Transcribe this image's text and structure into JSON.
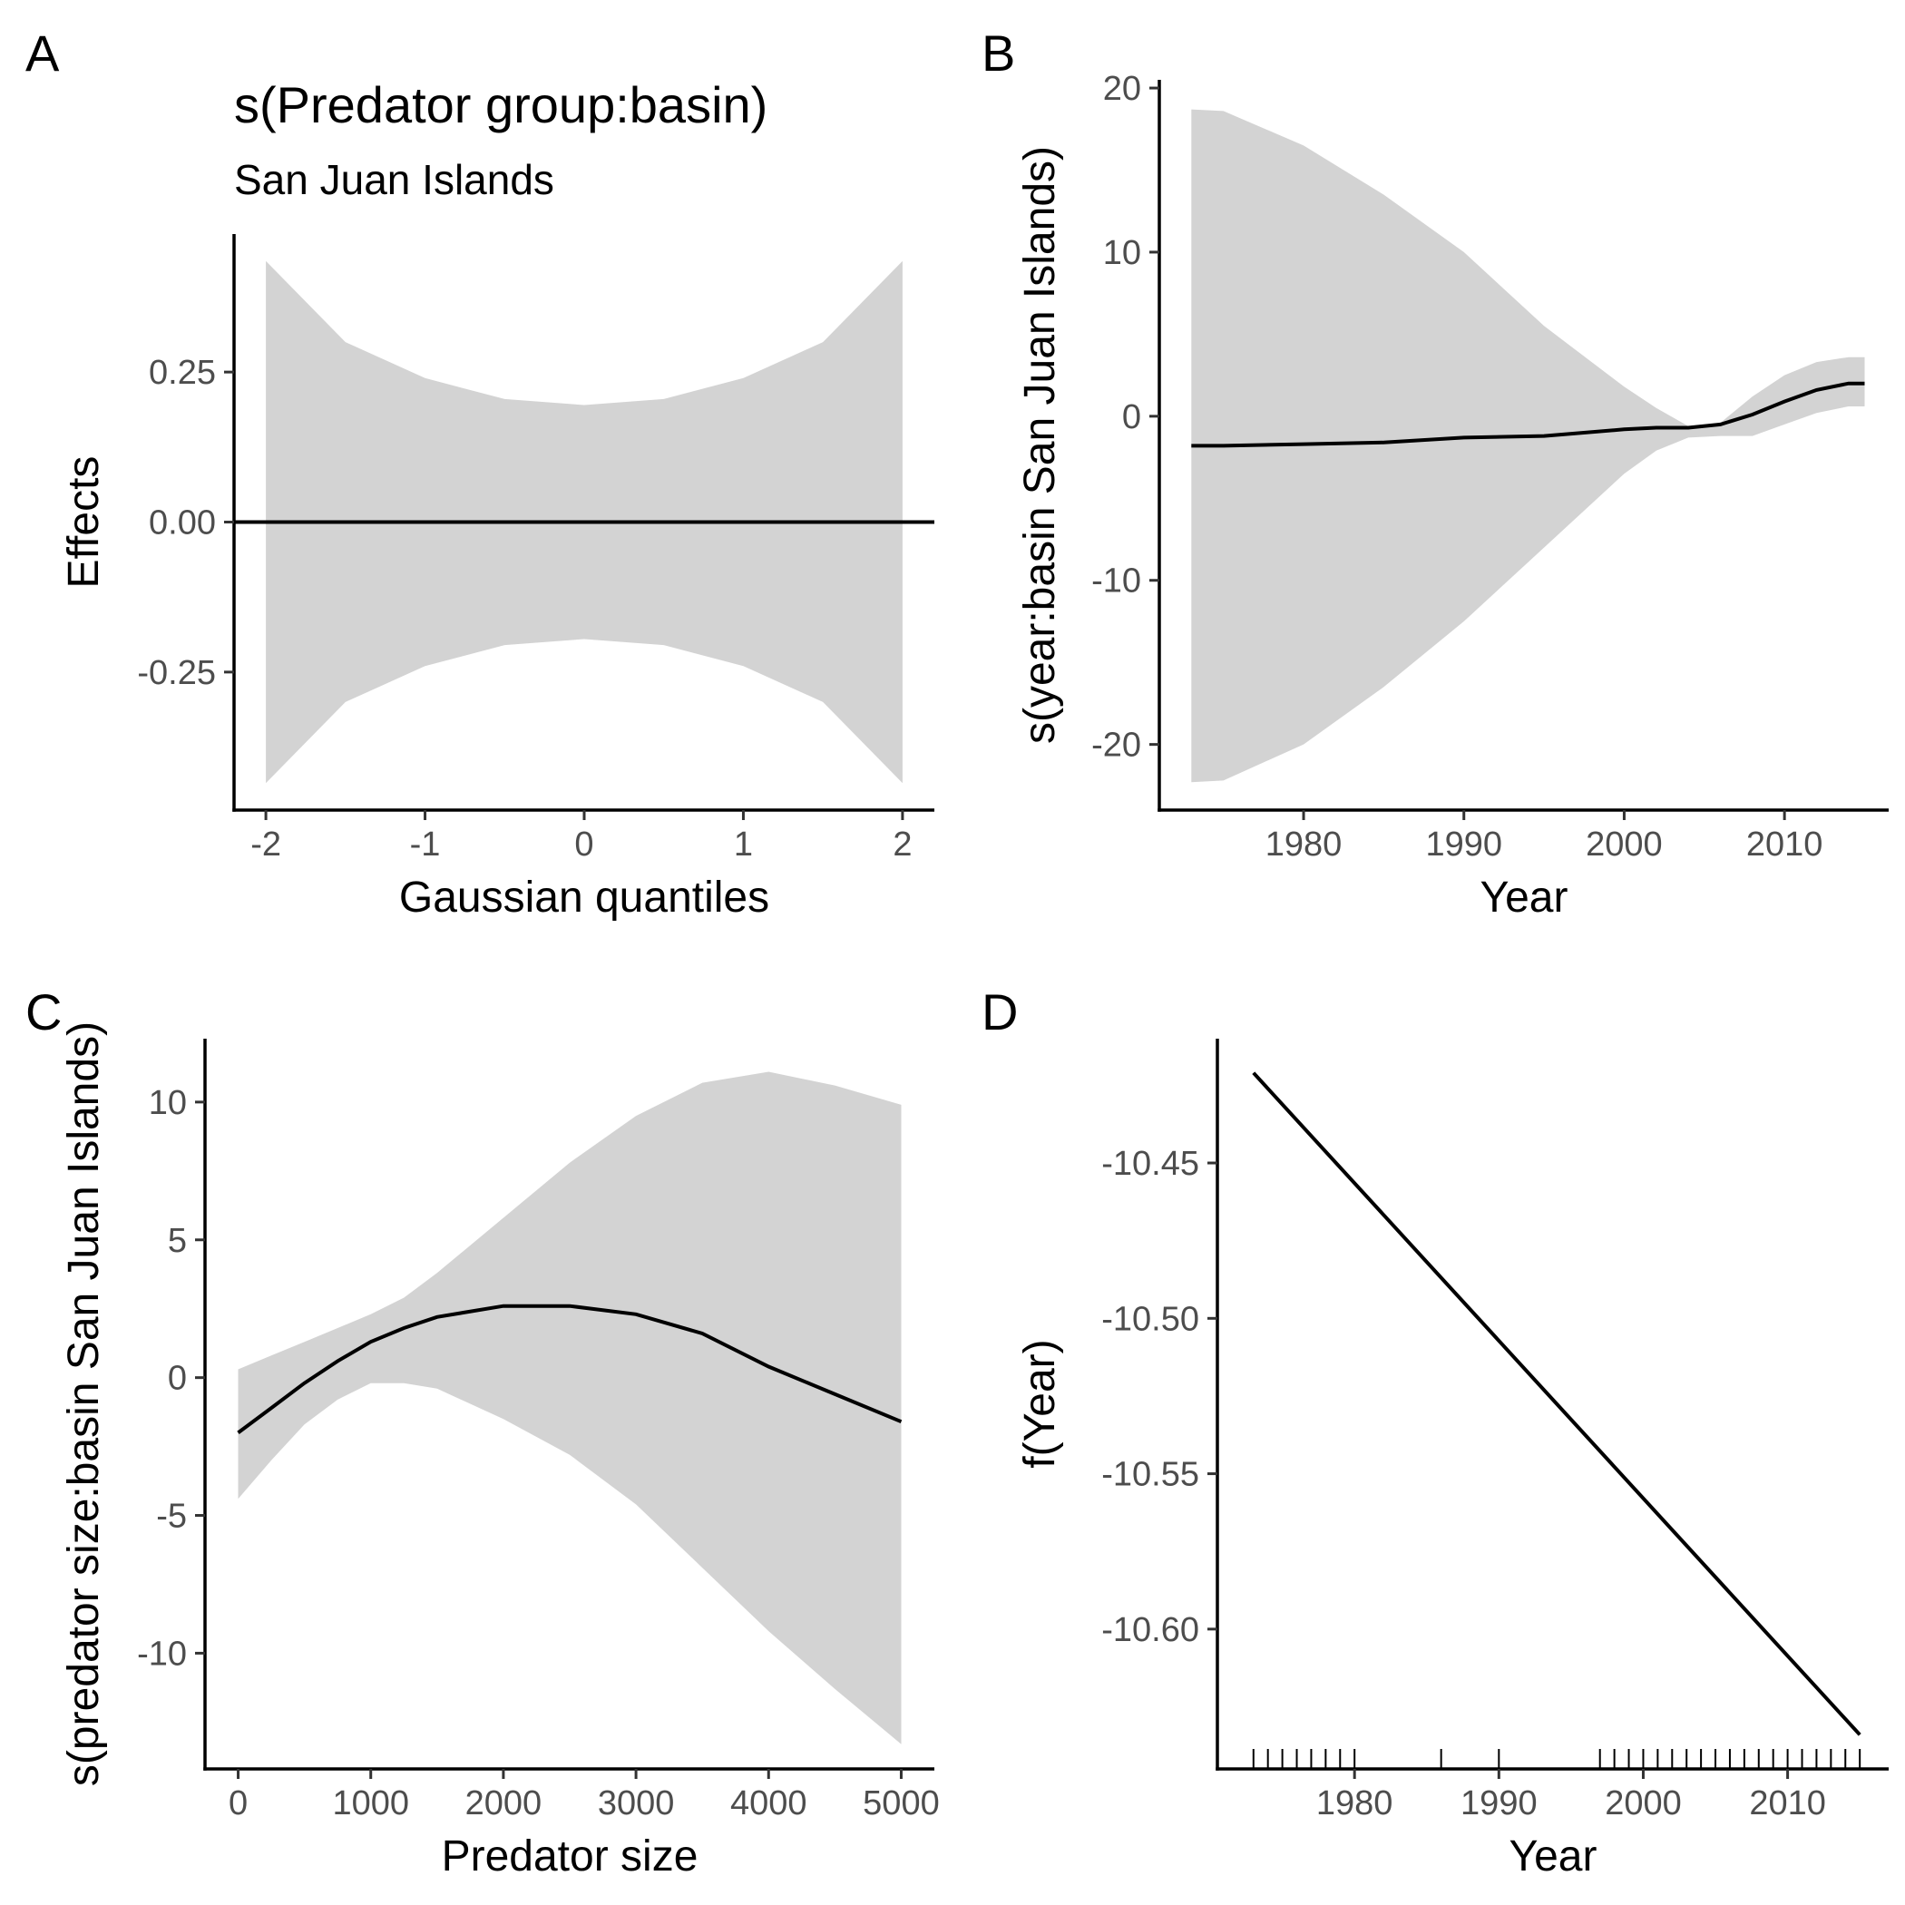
{
  "chart_data": [
    {
      "panel": "A",
      "type": "line",
      "title": "s(Predator group:basin)",
      "subtitle": "San Juan Islands",
      "xlabel": "Gaussian quantiles",
      "ylabel": "Effects",
      "xlim": [
        -2.2,
        2.2
      ],
      "ylim": [
        -0.48,
        0.48
      ],
      "xticks": [
        -2,
        -1,
        0,
        1,
        2
      ],
      "xtick_labels": [
        "-2",
        "-1",
        "0",
        "1",
        "2"
      ],
      "yticks": [
        -0.25,
        0,
        0.25
      ],
      "ytick_labels": [
        "-0.25",
        "0.00",
        "0.25"
      ],
      "line": {
        "x": [
          -2.2,
          2.2
        ],
        "y": [
          0,
          0
        ]
      },
      "band": {
        "x": [
          -2,
          -1.5,
          -1,
          -0.5,
          0,
          0.5,
          1,
          1.5,
          2
        ],
        "upper": [
          0.435,
          0.3,
          0.24,
          0.205,
          0.195,
          0.205,
          0.24,
          0.3,
          0.435
        ],
        "lower": [
          -0.435,
          -0.3,
          -0.24,
          -0.205,
          -0.195,
          -0.205,
          -0.24,
          -0.3,
          -0.435
        ]
      }
    },
    {
      "panel": "B",
      "type": "line",
      "xlabel": "Year",
      "ylabel": "s(year:basin San Juan Islands)",
      "xlim": [
        1971,
        2016.5
      ],
      "ylim": [
        -24,
        20.5
      ],
      "xticks": [
        1980,
        1990,
        2000,
        2010
      ],
      "xtick_labels": [
        "1980",
        "1990",
        "2000",
        "2010"
      ],
      "yticks": [
        -20,
        -10,
        0,
        10,
        20
      ],
      "ytick_labels": [
        "-20",
        "-10",
        "0",
        "10",
        "20"
      ],
      "x": [
        1973,
        1975,
        1980,
        1985,
        1990,
        1995,
        2000,
        2002,
        2004,
        2006,
        2008,
        2010,
        2012,
        2014,
        2015
      ],
      "y": [
        -1.8,
        -1.8,
        -1.7,
        -1.6,
        -1.3,
        -1.2,
        -0.8,
        -0.7,
        -0.7,
        -0.5,
        0.1,
        0.9,
        1.6,
        2.0,
        2.0
      ],
      "upper": [
        18.7,
        18.6,
        16.5,
        13.5,
        10.0,
        5.5,
        1.8,
        0.5,
        -0.6,
        -0.4,
        1.2,
        2.5,
        3.3,
        3.6,
        3.6
      ],
      "lower": [
        -22.3,
        -22.2,
        -20.0,
        -16.5,
        -12.5,
        -8.0,
        -3.5,
        -2.1,
        -1.3,
        -1.2,
        -1.2,
        -0.5,
        0.2,
        0.6,
        0.6
      ]
    },
    {
      "panel": "C",
      "type": "line",
      "xlabel": "Predator size",
      "ylabel": "s(predator size:basin San Juan Islands)",
      "xlim": [
        -250,
        5250
      ],
      "ylim": [
        -14.2,
        12.3
      ],
      "xticks": [
        0,
        1000,
        2000,
        3000,
        4000,
        5000
      ],
      "xtick_labels": [
        "0",
        "1000",
        "2000",
        "3000",
        "4000",
        "5000"
      ],
      "yticks": [
        -10,
        -5,
        0,
        5,
        10
      ],
      "ytick_labels": [
        "-10",
        "-5",
        "0",
        "5",
        "10"
      ],
      "x": [
        0,
        250,
        500,
        750,
        1000,
        1250,
        1500,
        2000,
        2500,
        3000,
        3500,
        4000,
        4500,
        5000
      ],
      "y": [
        -2.0,
        -1.1,
        -0.2,
        0.6,
        1.3,
        1.8,
        2.2,
        2.6,
        2.6,
        2.3,
        1.6,
        0.4,
        -0.6,
        -1.6
      ],
      "upper": [
        0.3,
        0.8,
        1.3,
        1.8,
        2.3,
        2.9,
        3.8,
        5.8,
        7.8,
        9.5,
        10.7,
        11.1,
        10.6,
        9.9
      ],
      "lower": [
        -4.4,
        -3.0,
        -1.7,
        -0.8,
        -0.2,
        -0.2,
        -0.4,
        -1.5,
        -2.8,
        -4.6,
        -6.9,
        -9.2,
        -11.3,
        -13.3
      ]
    },
    {
      "panel": "D",
      "type": "line",
      "xlabel": "Year",
      "ylabel": "f(Year)",
      "xlim": [
        1970.5,
        2017
      ],
      "ylim": [
        -10.645,
        -10.41
      ],
      "xticks": [
        1980,
        1990,
        2000,
        2010
      ],
      "xtick_labels": [
        "1980",
        "1990",
        "2000",
        "2010"
      ],
      "yticks": [
        -10.6,
        -10.55,
        -10.5,
        -10.45
      ],
      "ytick_labels": [
        "-10.60",
        "-10.55",
        "-10.50",
        "-10.45"
      ],
      "x": [
        1973,
        2015
      ],
      "y": [
        -10.421,
        -10.634
      ],
      "rug": [
        1973,
        1974,
        1975,
        1976,
        1977,
        1978,
        1979,
        1980,
        1986,
        1990,
        1997,
        1998,
        1999,
        2000,
        2001,
        2002,
        2003,
        2004,
        2005,
        2006,
        2007,
        2008,
        2009,
        2010,
        2011,
        2012,
        2013,
        2014,
        2015
      ]
    }
  ]
}
